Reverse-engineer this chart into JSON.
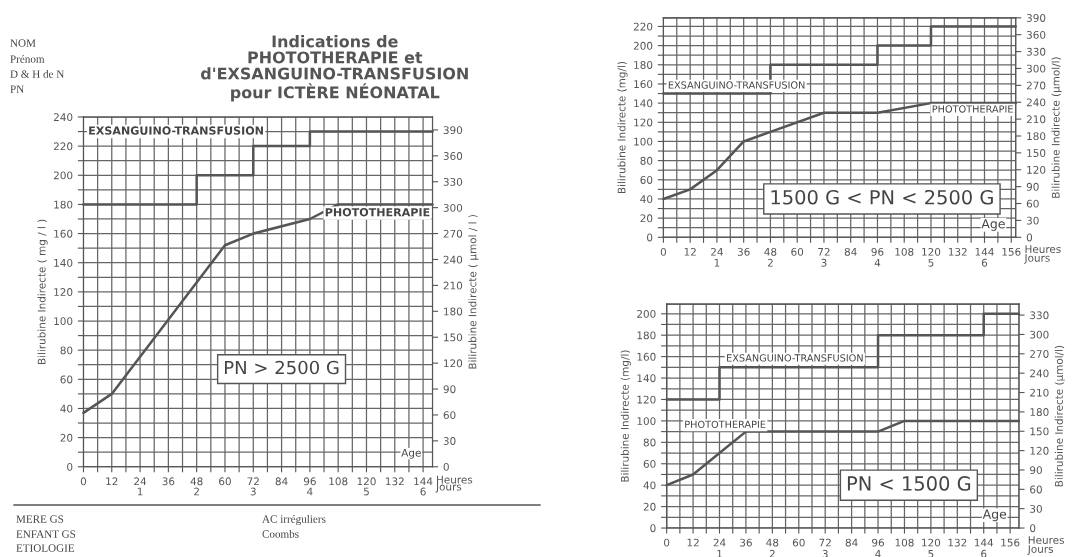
{
  "chart_data": [
    {
      "type": "line",
      "title": "Indications de\nPHOTOTHERAPIE et\nd'EXSANGUINO-TRANSFUSION\npour ICTÈRE NÉONATAL",
      "xlabel": "Heures",
      "x2label": "Jours",
      "ylabel": "Bilirubine Indirecte ( mg / l )",
      "y2label": "Bilirubine Indirecte ( µmol / l )",
      "series": [
        {
          "name": "EXSANGUINO-TRANSFUSION",
          "color": "#555555",
          "x": [
            0,
            48,
            48,
            72,
            72,
            96,
            96,
            148
          ],
          "values": [
            180,
            180,
            200,
            200,
            220,
            220,
            230,
            230
          ]
        },
        {
          "name": "PHOTOTHERAPIE",
          "color": "#555555",
          "x": [
            0,
            12,
            60,
            72,
            96,
            108,
            148
          ],
          "values": [
            37,
            50,
            152,
            160,
            170,
            180,
            180
          ]
        }
      ],
      "xlim": [
        0,
        148
      ],
      "xticks": [
        0,
        {
          "value": 6,
          "label": null
        },
        12,
        {
          "value": 18,
          "label": null
        },
        24,
        {
          "value": 30,
          "label": null
        },
        36,
        {
          "value": 42,
          "label": null
        },
        48,
        {
          "value": 54,
          "label": null
        },
        60,
        {
          "value": 66,
          "label": null
        },
        72,
        {
          "value": 78,
          "label": null
        },
        84,
        {
          "value": 90,
          "label": null
        },
        96,
        {
          "value": 102,
          "label": null
        },
        108,
        {
          "value": 114,
          "label": null
        },
        120,
        {
          "value": 126,
          "label": null
        },
        132,
        {
          "value": 138,
          "label": null
        },
        144
      ],
      "x2lim": [
        0,
        6.1667
      ],
      "x2ticks": [
        1,
        2,
        3,
        4,
        5,
        6
      ],
      "ylim": [
        0,
        240
      ],
      "yticks": [
        0,
        {
          "value": 10,
          "label": null
        },
        20,
        {
          "value": 30,
          "label": null
        },
        40,
        {
          "value": 50,
          "label": null
        },
        60,
        {
          "value": 70,
          "label": null
        },
        80,
        {
          "value": 90,
          "label": null
        },
        100,
        {
          "value": 110,
          "label": null
        },
        120,
        {
          "value": 130,
          "label": null
        },
        140,
        {
          "value": 150,
          "label": null
        },
        160,
        {
          "value": 170,
          "label": null
        },
        180,
        {
          "value": 190,
          "label": null
        },
        200,
        {
          "value": 210,
          "label": null
        },
        220,
        {
          "value": 230,
          "label": null
        },
        240
      ],
      "y2lim": [
        0,
        405
      ],
      "y2ticks": [
        0,
        30,
        60,
        90,
        120,
        150,
        180,
        210,
        240,
        270,
        300,
        330,
        360,
        390
      ],
      "annotations": [
        "NOM",
        "Prénom",
        "D & H de N",
        "PN",
        "PN > 2500 G",
        "Age",
        "MERE GS",
        "ENFANT GS",
        "ETIOLOGIE",
        "AC irréguliers",
        "Coombs"
      ],
      "grid": true,
      "legend": false,
      "marker": "none",
      "line_style": "solid"
    },
    {
      "type": "line",
      "xlabel": "Heures",
      "x2label": "Jours",
      "ylabel": "Bilirubine Indirecte (mg/l)",
      "y2label": "Bilirubine Indirecte (µmol/l)",
      "series": [
        {
          "name": "EXSANGUINO-TRANSFUSION",
          "color": "#555555",
          "x": [
            0,
            48,
            48,
            96,
            96,
            120,
            120,
            158
          ],
          "values": [
            150,
            150,
            180,
            180,
            200,
            200,
            220,
            220
          ]
        },
        {
          "name": "PHOTOTHERAPIE",
          "color": "#555555",
          "x": [
            0,
            12,
            24,
            36,
            48,
            72,
            96,
            120,
            158
          ],
          "values": [
            40,
            50,
            70,
            100,
            110,
            130,
            130,
            140,
            140
          ]
        }
      ],
      "xlim": [
        0,
        158
      ],
      "xticks": [
        0,
        {
          "value": 6,
          "label": null
        },
        12,
        {
          "value": 18,
          "label": null
        },
        24,
        {
          "value": 30,
          "label": null
        },
        36,
        {
          "value": 42,
          "label": null
        },
        48,
        {
          "value": 54,
          "label": null
        },
        60,
        {
          "value": 66,
          "label": null
        },
        72,
        {
          "value": 78,
          "label": null
        },
        84,
        {
          "value": 90,
          "label": null
        },
        96,
        {
          "value": 102,
          "label": null
        },
        108,
        {
          "value": 114,
          "label": null
        },
        120,
        {
          "value": 126,
          "label": null
        },
        132,
        {
          "value": 138,
          "label": null
        },
        144,
        {
          "value": 150,
          "label": null
        },
        156
      ],
      "x2lim": [
        0,
        6.5833
      ],
      "x2ticks": [
        1,
        2,
        3,
        4,
        5,
        6
      ],
      "ylim": [
        0,
        229
      ],
      "yticks": [
        0,
        {
          "value": 10,
          "label": null
        },
        20,
        {
          "value": 30,
          "label": null
        },
        40,
        {
          "value": 50,
          "label": null
        },
        60,
        {
          "value": 70,
          "label": null
        },
        80,
        {
          "value": 90,
          "label": null
        },
        100,
        {
          "value": 110,
          "label": null
        },
        120,
        {
          "value": 130,
          "label": null
        },
        140,
        {
          "value": 150,
          "label": null
        },
        160,
        {
          "value": 170,
          "label": null
        },
        180,
        {
          "value": 190,
          "label": null
        },
        200,
        {
          "value": 210,
          "label": null
        },
        220
      ],
      "y2lim": [
        0,
        390
      ],
      "y2ticks": [
        0,
        30,
        60,
        90,
        120,
        150,
        180,
        210,
        240,
        270,
        300,
        330,
        360,
        390
      ],
      "annotations": [
        "1500 G < PN < 2500 G",
        "Age"
      ],
      "grid": true,
      "legend": false,
      "marker": "none",
      "line_style": "solid"
    },
    {
      "type": "line",
      "xlabel": "Heures",
      "x2label": "Jours",
      "ylabel": "Bilirubine Indirecte (mg/l)",
      "y2label": "Bilirubine Indirecte (µmol/l)",
      "series": [
        {
          "name": "EXSANGUINO-TRANSFUSION",
          "color": "#555555",
          "x": [
            0,
            24,
            24,
            96,
            96,
            144,
            144,
            160
          ],
          "values": [
            120,
            120,
            150,
            150,
            180,
            180,
            200,
            200
          ]
        },
        {
          "name": "PHOTOTHERAPIE",
          "color": "#555555",
          "x": [
            0,
            12,
            24,
            36,
            96,
            108,
            160
          ],
          "values": [
            40,
            50,
            70,
            90,
            90,
            100,
            100
          ]
        }
      ],
      "xlim": [
        0,
        160
      ],
      "xticks": [
        0,
        {
          "value": 6,
          "label": null
        },
        12,
        {
          "value": 18,
          "label": null
        },
        24,
        {
          "value": 30,
          "label": null
        },
        36,
        {
          "value": 42,
          "label": null
        },
        48,
        {
          "value": 54,
          "label": null
        },
        60,
        {
          "value": 66,
          "label": null
        },
        72,
        {
          "value": 78,
          "label": null
        },
        84,
        {
          "value": 90,
          "label": null
        },
        96,
        {
          "value": 102,
          "label": null
        },
        108,
        {
          "value": 114,
          "label": null
        },
        120,
        {
          "value": 126,
          "label": null
        },
        132,
        {
          "value": 138,
          "label": null
        },
        144,
        {
          "value": 150,
          "label": null
        },
        156
      ],
      "x2lim": [
        0,
        6.6667
      ],
      "x2ticks": [
        1,
        2,
        3,
        4,
        5,
        6
      ],
      "ylim": [
        0,
        209
      ],
      "yticks": [
        0,
        {
          "value": 10,
          "label": null
        },
        20,
        {
          "value": 30,
          "label": null
        },
        40,
        {
          "value": 50,
          "label": null
        },
        60,
        {
          "value": 70,
          "label": null
        },
        80,
        {
          "value": 90,
          "label": null
        },
        100,
        {
          "value": 110,
          "label": null
        },
        120,
        {
          "value": 130,
          "label": null
        },
        140,
        {
          "value": 150,
          "label": null
        },
        160,
        {
          "value": 170,
          "label": null
        },
        180,
        {
          "value": 190,
          "label": null
        },
        200
      ],
      "y2lim": [
        0,
        347
      ],
      "y2ticks": [
        0,
        30,
        60,
        90,
        120,
        150,
        180,
        210,
        240,
        270,
        300,
        330
      ],
      "annotations": [
        "PN < 1500 G",
        "Age"
      ],
      "grid": true,
      "legend": false,
      "marker": "none",
      "line_style": "solid"
    }
  ]
}
